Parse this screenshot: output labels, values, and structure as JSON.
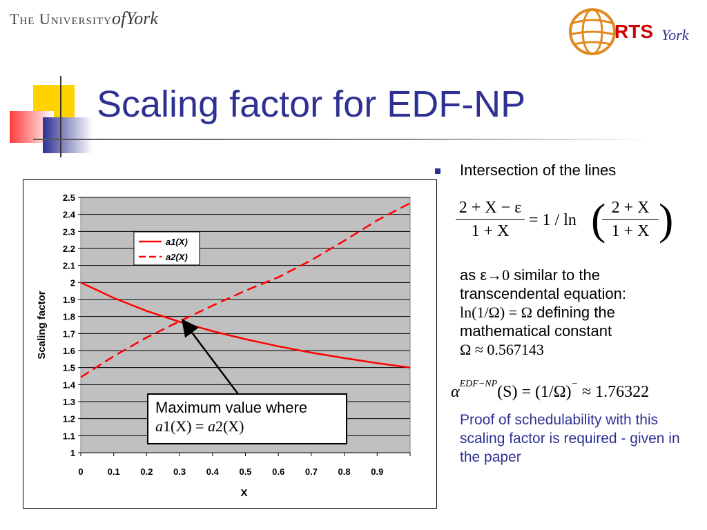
{
  "header": {
    "university_prefix": "The University",
    "university_of": "of",
    "university_york": "York",
    "rts_main": "RTS",
    "rts_york": "York"
  },
  "title": "Scaling factor for EDF-NP",
  "chart_data": {
    "type": "line",
    "xlabel": "X",
    "ylabel": "Scaling factor",
    "xlim": [
      0,
      1
    ],
    "ylim": [
      1,
      2.5
    ],
    "x_ticks": [
      "0",
      "0.1",
      "0.2",
      "0.3",
      "0.4",
      "0.5",
      "0.6",
      "0.7",
      "0.8",
      "0.9"
    ],
    "y_ticks": [
      "1",
      "1.1",
      "1.2",
      "1.3",
      "1.4",
      "1.5",
      "1.6",
      "1.7",
      "1.8",
      "1.9",
      "2",
      "2.1",
      "2.2",
      "2.3",
      "2.4",
      "2.5"
    ],
    "legend_position": "top-center",
    "grid": true,
    "series": [
      {
        "name": "a1(X)",
        "style": "solid",
        "color": "#ff0000",
        "x": [
          0,
          0.1,
          0.2,
          0.3,
          0.4,
          0.5,
          0.6,
          0.7,
          0.8,
          0.9,
          1.0
        ],
        "values": [
          2.0,
          1.909,
          1.833,
          1.769,
          1.714,
          1.667,
          1.625,
          1.588,
          1.556,
          1.526,
          1.5
        ]
      },
      {
        "name": "a2(X)",
        "style": "dashed",
        "color": "#ff0000",
        "x": [
          0,
          0.1,
          0.2,
          0.3,
          0.4,
          0.5,
          0.6,
          0.7,
          0.8,
          0.9,
          1.0
        ],
        "values": [
          1.443,
          1.567,
          1.677,
          1.772,
          1.864,
          1.952,
          2.031,
          2.131,
          2.245,
          2.365,
          2.466
        ]
      }
    ]
  },
  "callout": {
    "text": "Maximum value where",
    "equation_left": "a",
    "equation_left_arg": "1(X)",
    "equation_eq": "=",
    "equation_right": "a",
    "equation_right_arg": "2(X)"
  },
  "right": {
    "bullet": "Intersection of the lines",
    "eq1_num_left": "2 + X − ε",
    "eq1_den_left": "1 + X",
    "eq1_middle": "= 1 / ln",
    "eq1_num_right": "2 + X",
    "eq1_den_right": "1 + X",
    "as_prefix": "as ε",
    "as_arrow": "→0",
    "as_suffix": " similar to the",
    "line_transcendental": "transcendental equation:",
    "ln_eq": "ln(1/Ω) = Ω",
    "defining": " defining the",
    "mathematical": "mathematical constant",
    "omega_value": "Ω ≈ 0.567143",
    "alpha": "α",
    "alpha_sup": "EDF−NP",
    "alpha_rest": "(S) = (1/Ω)",
    "alpha_rest_sup": "−",
    "alpha_value": " ≈ 1.76322",
    "proof": "Proof of schedulability with this scaling factor is required - given in the paper"
  },
  "colors": {
    "title": "#2e3192",
    "plot_bg": "#c0c0c0",
    "series": "#ff0000",
    "proof_text": "#2e3192"
  }
}
